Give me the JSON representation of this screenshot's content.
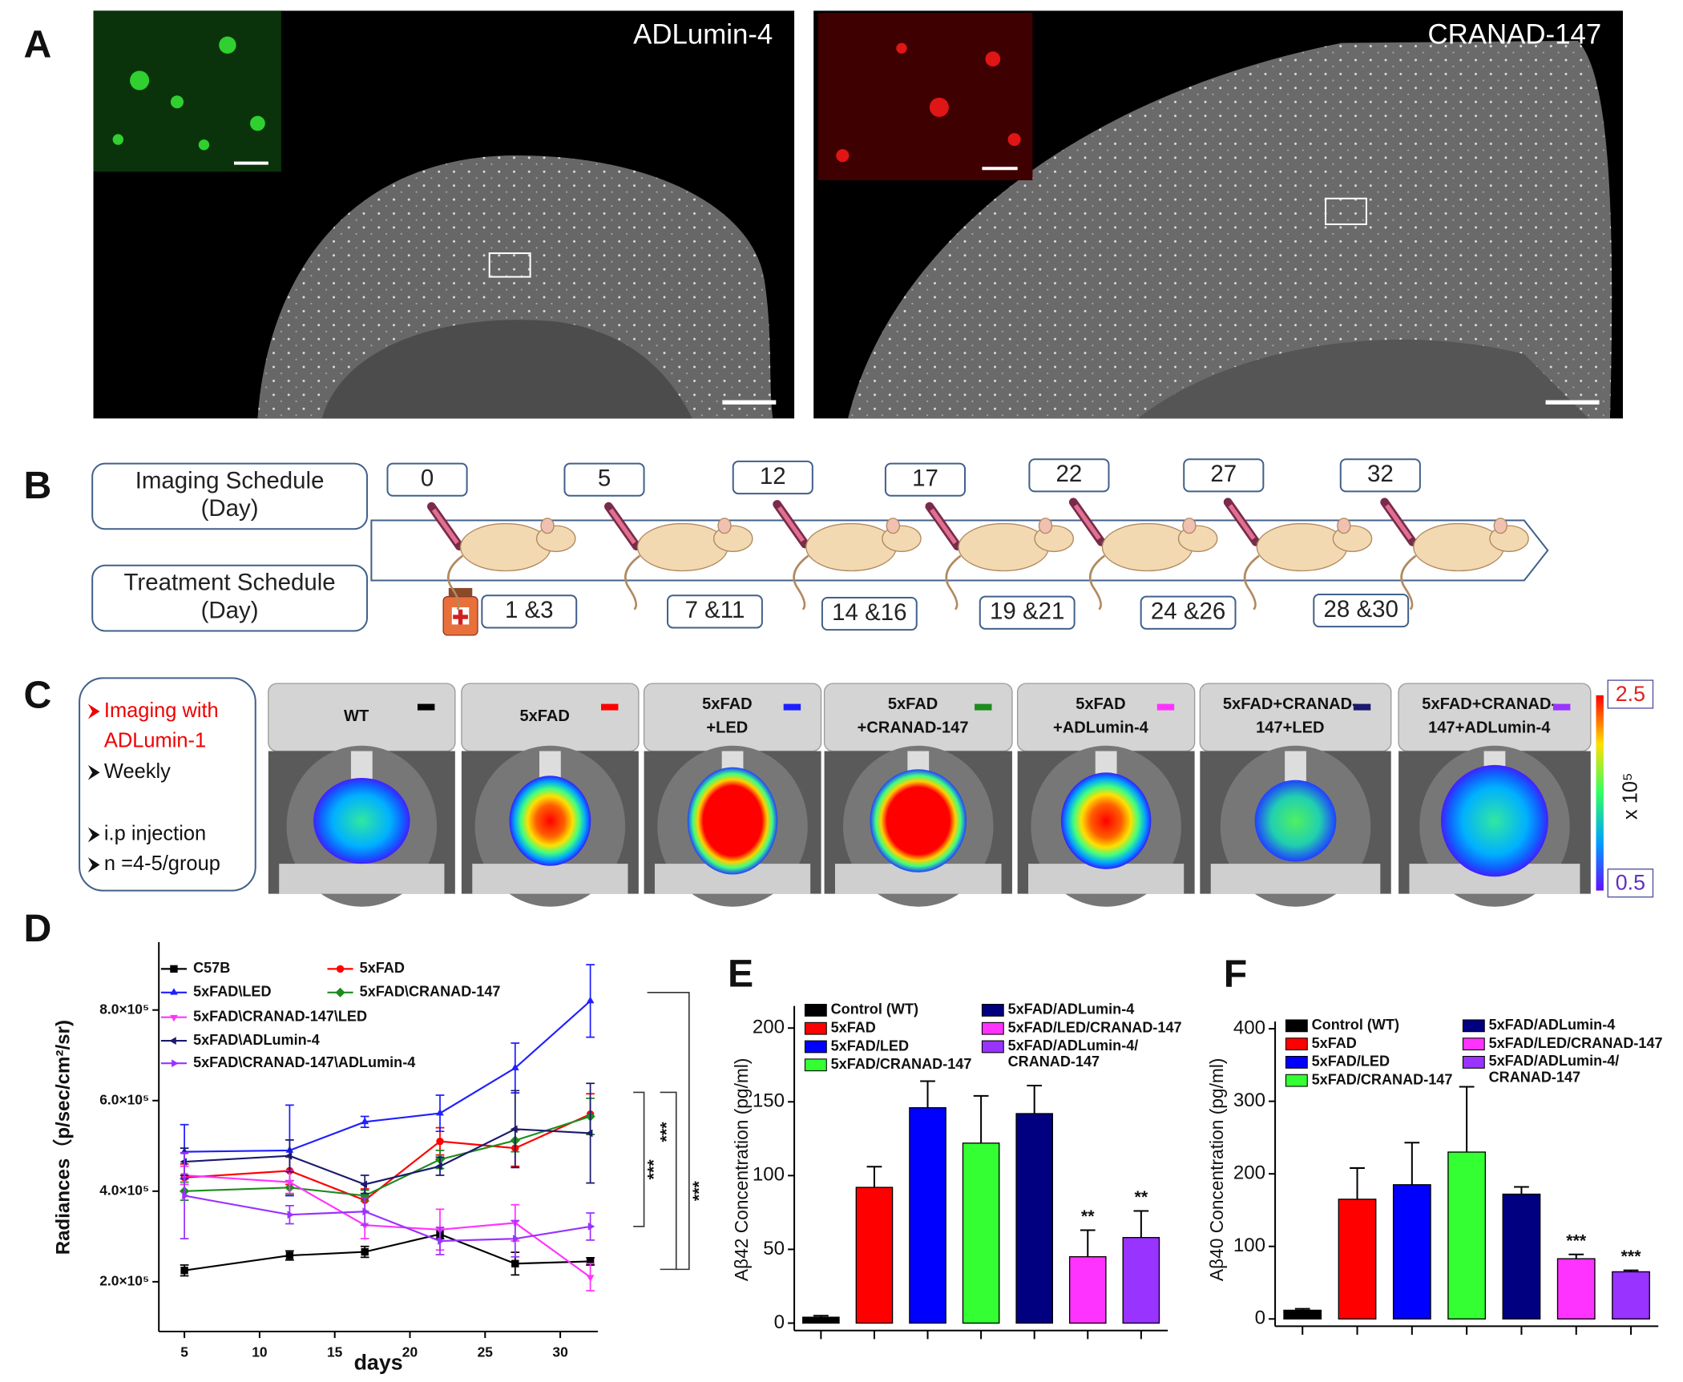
{
  "panel_labels": [
    "A",
    "B",
    "C",
    "D",
    "E",
    "F"
  ],
  "panel_a": {
    "images": [
      {
        "title": "ADLumin-4"
      },
      {
        "title": "CRANAD-147"
      }
    ]
  },
  "panel_b": {
    "imaging_label": "Imaging Schedule\n(Day)",
    "treatment_label": "Treatment Schedule\n(Day)",
    "imaging_days": [
      "0",
      "5",
      "12",
      "17",
      "22",
      "27",
      "32"
    ],
    "treatment_days": [
      "1 &3",
      "7 &11",
      "14 &16",
      "19 &21",
      "24 &26",
      "28 &30"
    ]
  },
  "panel_c": {
    "notes": [
      "Imaging with\nADLumin-1",
      "Weekly",
      "i.p injection",
      "n =4-5/group"
    ],
    "groups": [
      "WT",
      "5xFAD",
      "5xFAD\n+LED",
      "5xFAD\n+CRANAD-147",
      "5xFAD\n+ADLumin-4",
      "5xFAD+CRANAD-\n147+LED",
      "5xFAD+CRANAD-\n147+ADLumin-4"
    ],
    "colorbar": {
      "max": 2.5,
      "min": 0.5,
      "unit": "x 10⁵"
    }
  },
  "chart_data": [
    {
      "type": "line",
      "x_label": "days",
      "y_label": "Radiances（p/sec/cm²/sr)",
      "xlim": [
        3.3,
        32.5
      ],
      "ylim": [
        90000,
        950000
      ],
      "xticks": [
        5,
        10,
        15,
        20,
        25,
        30
      ],
      "yticks": [
        {
          "value": 200000,
          "label": "2.0×10⁵"
        },
        {
          "value": 400000,
          "label": "4.0×10⁵"
        },
        {
          "value": 600000,
          "label": "6.0×10⁵"
        },
        {
          "value": 800000,
          "label": "8.0×10⁵"
        }
      ],
      "x": [
        5,
        12,
        17,
        22,
        27,
        32
      ],
      "series": [
        {
          "name": "C57B",
          "color": "#000000",
          "marker": "square",
          "values": [
            225000,
            258000,
            266000,
            305000,
            240000,
            245000
          ],
          "errors": [
            12000,
            10000,
            12000,
            10000,
            25000,
            8000
          ]
        },
        {
          "name": "5xFAD",
          "color": "#ff0000",
          "marker": "circle",
          "values": [
            430000,
            445000,
            380000,
            510000,
            495000,
            570000
          ],
          "errors": [
            30000,
            30000,
            25000,
            30000,
            40000,
            45000
          ]
        },
        {
          "name": "5xFAD\\LED",
          "color": "#1f1fff",
          "marker": "triangle",
          "values": [
            487000,
            490000,
            553000,
            572000,
            672000,
            820000
          ],
          "errors": [
            60000,
            100000,
            12000,
            40000,
            55000,
            80000
          ]
        },
        {
          "name": "5xFAD\\CRANAD-147",
          "color": "#1e8b1e",
          "marker": "diamond",
          "values": [
            400000,
            408000,
            390000,
            470000,
            512000,
            565000
          ],
          "errors": [
            20000,
            15000,
            12000,
            20000,
            25000,
            40000
          ]
        },
        {
          "name": "5xFAD\\CRANAD-147\\LED",
          "color": "#ff33ff",
          "marker": "triangle-down",
          "values": [
            435000,
            420000,
            325000,
            315000,
            330000,
            210000
          ],
          "errors": [
            20000,
            25000,
            30000,
            45000,
            40000,
            30000
          ]
        },
        {
          "name": "5xFAD\\ADLumin-4",
          "color": "#1a1a6e",
          "marker": "triangle-left",
          "values": [
            465000,
            478000,
            415000,
            455000,
            537000,
            528000
          ],
          "errors": [
            30000,
            35000,
            20000,
            20000,
            85000,
            110000
          ]
        },
        {
          "name": "5xFAD\\CRANAD-147\\ADLumin-4",
          "color": "#9933ff",
          "marker": "triangle-right",
          "values": [
            390000,
            348000,
            355000,
            290000,
            295000,
            322000
          ],
          "errors": [
            95000,
            20000,
            30000,
            30000,
            40000,
            30000
          ]
        }
      ],
      "significance": [
        "***",
        "***",
        "***"
      ]
    },
    {
      "type": "bar",
      "y_label": "Aβ42 Concentration (pg/ml)",
      "ylim": [
        -5,
        215
      ],
      "yticks": [
        0,
        50,
        100,
        150,
        200
      ],
      "categories": [
        null,
        null,
        null,
        null,
        null,
        null,
        null
      ],
      "values": [
        4,
        92,
        146,
        122,
        142,
        45,
        58
      ],
      "errors": [
        1,
        14,
        18,
        32,
        19,
        18,
        18
      ],
      "colors": [
        "#000000",
        "#ff0000",
        "#0000ff",
        "#33ff33",
        "#000080",
        "#ff33ff",
        "#9933ff"
      ],
      "legend": [
        "Control (WT)",
        "5xFAD",
        "5xFAD/LED",
        "5xFAD/CRANAD-147",
        "5xFAD/ADLumin-4",
        "5xFAD/LED/CRANAD-147",
        "5xFAD/ADLumin-4/\nCRANAD-147"
      ],
      "significance": [
        null,
        null,
        null,
        null,
        null,
        "**",
        "**"
      ]
    },
    {
      "type": "bar",
      "y_label": "Aβ40 Concentration (pg/ml)",
      "ylim": [
        -10,
        410
      ],
      "yticks": [
        0,
        100,
        200,
        300,
        400
      ],
      "categories": [
        null,
        null,
        null,
        null,
        null,
        null,
        null
      ],
      "values": [
        12,
        165,
        185,
        230,
        172,
        83,
        65
      ],
      "errors": [
        2,
        43,
        58,
        90,
        10,
        6,
        2
      ],
      "colors": [
        "#000000",
        "#ff0000",
        "#0000ff",
        "#33ff33",
        "#000080",
        "#ff33ff",
        "#9933ff"
      ],
      "legend": [
        "Control (WT)",
        "5xFAD",
        "5xFAD/LED",
        "5xFAD/CRANAD-147",
        "5xFAD/ADLumin-4",
        "5xFAD/LED/CRANAD-147",
        "5xFAD/ADLumin-4/\nCRANAD-147"
      ],
      "significance": [
        null,
        null,
        null,
        null,
        null,
        "***",
        "***"
      ]
    }
  ]
}
